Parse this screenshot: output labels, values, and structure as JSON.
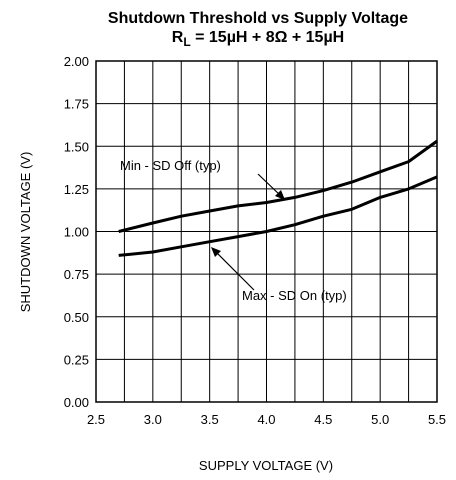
{
  "chart_data": {
    "type": "line",
    "title": "Shutdown Threshold vs Supply Voltage",
    "subtitle": {
      "prefix": "R",
      "subscript": "L",
      "suffix": " = 15µH + 8Ω + 15µH"
    },
    "xlabel": "SUPPLY VOLTAGE (V)",
    "ylabel": "SHUTDOWN VOLTAGE (V)",
    "xlim": [
      2.5,
      5.5
    ],
    "ylim": [
      0.0,
      2.0
    ],
    "x_ticks": [
      "2.5",
      "3.0",
      "3.5",
      "4.0",
      "4.5",
      "5.0",
      "5.5"
    ],
    "y_ticks": [
      "0.00",
      "0.25",
      "0.50",
      "0.75",
      "1.00",
      "1.25",
      "1.50",
      "1.75",
      "2.00"
    ],
    "grid": true,
    "series": [
      {
        "name": "Min - SD Off (typ)",
        "x": [
          2.7,
          3.0,
          3.25,
          3.5,
          3.75,
          4.0,
          4.25,
          4.5,
          4.75,
          5.0,
          5.25,
          5.5
        ],
        "y": [
          1.0,
          1.05,
          1.09,
          1.12,
          1.15,
          1.17,
          1.2,
          1.24,
          1.29,
          1.35,
          1.41,
          1.53
        ]
      },
      {
        "name": "Max - SD On (typ)",
        "x": [
          2.7,
          3.0,
          3.25,
          3.5,
          3.75,
          4.0,
          4.25,
          4.5,
          4.75,
          5.0,
          5.25,
          5.5
        ],
        "y": [
          0.86,
          0.88,
          0.91,
          0.94,
          0.97,
          1.0,
          1.04,
          1.09,
          1.13,
          1.2,
          1.25,
          1.32
        ]
      }
    ]
  }
}
